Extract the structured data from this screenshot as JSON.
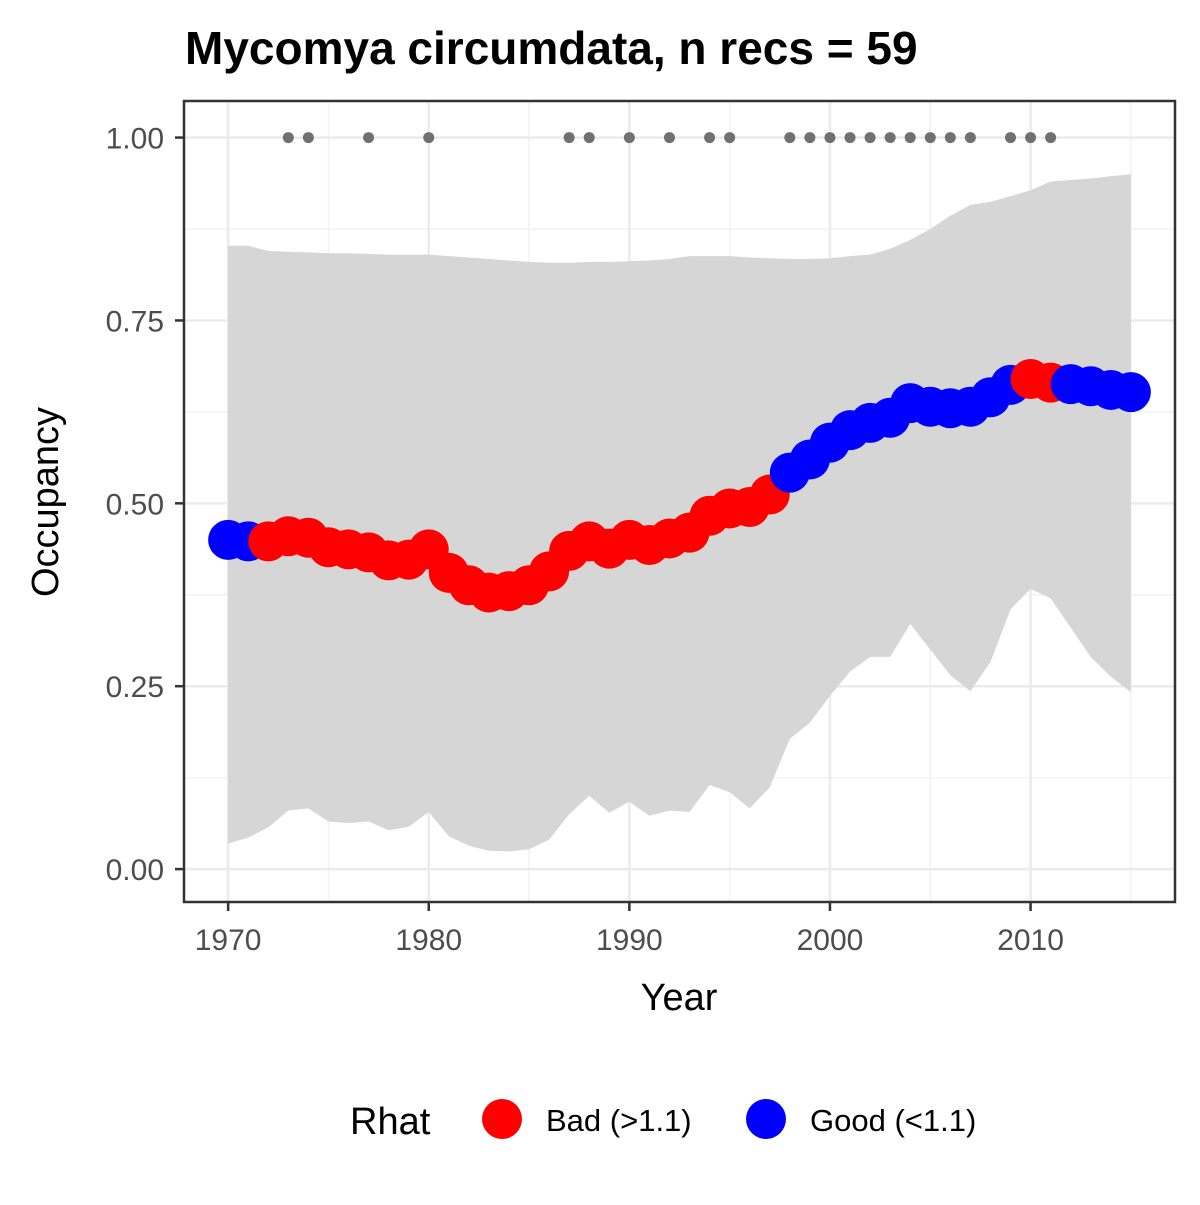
{
  "chart_data": {
    "type": "line",
    "title": "Mycomya circumdata, n recs = 59",
    "xlabel": "Year",
    "ylabel": "Occupancy",
    "xlim": [
      1967.8,
      2017.2
    ],
    "ylim": [
      -0.045,
      1.05
    ],
    "x_ticks": [
      1970,
      1980,
      1990,
      2000,
      2010
    ],
    "x_tick_labels": [
      "1970",
      "1980",
      "1990",
      "2000",
      "2010"
    ],
    "y_ticks": [
      0,
      0.25,
      0.5,
      0.75,
      1.0
    ],
    "y_tick_labels": [
      "0.00",
      "0.25",
      "0.50",
      "0.75",
      "1.00"
    ],
    "grid": true,
    "legend_position": "bottom",
    "legend": {
      "title": "Rhat",
      "entries": [
        {
          "key": "bad",
          "label": "Bad (>1.1)",
          "color": "#ff0000"
        },
        {
          "key": "good",
          "label": "Good (<1.1)",
          "color": "#0000ff"
        }
      ]
    },
    "colors": {
      "bad": "#ff0000",
      "good": "#0000ff",
      "ribbon": "#d6d6d6",
      "records": "#707070"
    },
    "series": [
      {
        "years": [
          1970,
          1971,
          1972,
          1973,
          1974,
          1975,
          1976,
          1977,
          1978,
          1979,
          1980,
          1981,
          1982,
          1983,
          1984,
          1985,
          1986,
          1987,
          1988,
          1989,
          1990,
          1991,
          1992,
          1993,
          1994,
          1995,
          1996,
          1997,
          1998,
          1999,
          2000,
          2001,
          2002,
          2003,
          2004,
          2005,
          2006,
          2007,
          2008,
          2009,
          2010,
          2011,
          2012,
          2013,
          2014,
          2015
        ],
        "occupancy": [
          0.45,
          0.448,
          0.448,
          0.455,
          0.453,
          0.44,
          0.437,
          0.433,
          0.422,
          0.423,
          0.437,
          0.405,
          0.388,
          0.378,
          0.38,
          0.388,
          0.407,
          0.435,
          0.448,
          0.438,
          0.45,
          0.443,
          0.452,
          0.46,
          0.483,
          0.493,
          0.495,
          0.512,
          0.542,
          0.56,
          0.583,
          0.6,
          0.61,
          0.617,
          0.637,
          0.632,
          0.63,
          0.632,
          0.645,
          0.662,
          0.67,
          0.665,
          0.663,
          0.66,
          0.655,
          0.652
        ],
        "rhat": [
          "good",
          "good",
          "bad",
          "bad",
          "bad",
          "bad",
          "bad",
          "bad",
          "bad",
          "bad",
          "bad",
          "bad",
          "bad",
          "bad",
          "bad",
          "bad",
          "bad",
          "bad",
          "bad",
          "bad",
          "bad",
          "bad",
          "bad",
          "bad",
          "bad",
          "bad",
          "bad",
          "bad",
          "good",
          "good",
          "good",
          "good",
          "good",
          "good",
          "good",
          "good",
          "good",
          "good",
          "good",
          "good",
          "bad",
          "bad",
          "good",
          "good",
          "good",
          "good"
        ],
        "lower": [
          0.035,
          0.043,
          0.057,
          0.08,
          0.083,
          0.065,
          0.063,
          0.065,
          0.053,
          0.058,
          0.078,
          0.045,
          0.032,
          0.025,
          0.024,
          0.027,
          0.04,
          0.075,
          0.1,
          0.077,
          0.092,
          0.073,
          0.08,
          0.078,
          0.115,
          0.105,
          0.083,
          0.112,
          0.178,
          0.2,
          0.237,
          0.27,
          0.29,
          0.29,
          0.335,
          0.3,
          0.265,
          0.243,
          0.283,
          0.355,
          0.383,
          0.37,
          0.33,
          0.29,
          0.263,
          0.242
        ],
        "upper": [
          0.852,
          0.852,
          0.845,
          0.844,
          0.843,
          0.842,
          0.842,
          0.841,
          0.84,
          0.84,
          0.84,
          0.838,
          0.836,
          0.834,
          0.832,
          0.83,
          0.829,
          0.829,
          0.83,
          0.83,
          0.831,
          0.832,
          0.834,
          0.838,
          0.838,
          0.838,
          0.836,
          0.835,
          0.834,
          0.834,
          0.835,
          0.838,
          0.84,
          0.848,
          0.86,
          0.875,
          0.893,
          0.908,
          0.912,
          0.92,
          0.928,
          0.94,
          0.942,
          0.944,
          0.947,
          0.95
        ]
      }
    ],
    "records": {
      "occupancy": 1.0,
      "years": [
        1973,
        1974,
        1977,
        1980,
        1987,
        1988,
        1990,
        1992,
        1994,
        1995,
        1998,
        1999,
        2000,
        2001,
        2002,
        2003,
        2004,
        2005,
        2006,
        2007,
        2009,
        2010,
        2011
      ]
    }
  }
}
